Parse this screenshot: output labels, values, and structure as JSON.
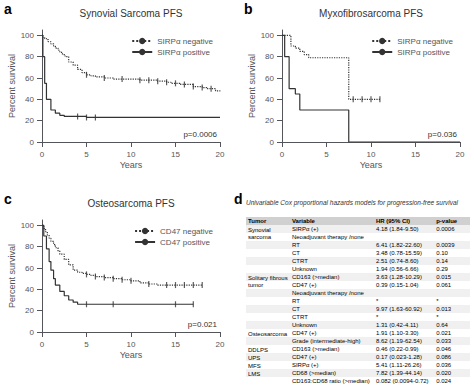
{
  "chart_data": [
    {
      "type": "step",
      "title": "Synovial Sarcoma PFS",
      "panel_label": "a",
      "annotations": [
        "p=0.0006"
      ],
      "xlabel": "Years",
      "ylabel": "Percent survival",
      "xlim": [
        0,
        20
      ],
      "ylim": [
        0,
        105
      ],
      "xticks": [
        0,
        5,
        10,
        15,
        20
      ],
      "yticks": [
        0,
        20,
        40,
        60,
        80,
        100
      ],
      "grid": false,
      "legend": "upper right",
      "series": [
        {
          "name": "SIRPα negative",
          "color": "#333333",
          "line_style": "dotted",
          "x": [
            0,
            0.1,
            0.3,
            0.5,
            0.7,
            1.0,
            1.3,
            1.5,
            1.8,
            2.0,
            2.3,
            2.6,
            3.0,
            3.5,
            4.0,
            4.5,
            5.0,
            5.5,
            6.0,
            7.0,
            8.0,
            9.0,
            10.0,
            11.0,
            12.0,
            13.0,
            14.0,
            14.5,
            15.0,
            15.5,
            16.0,
            16.5,
            17.0,
            18.0,
            18.5,
            19.0,
            19.5,
            20.0
          ],
          "values": [
            100,
            98,
            97,
            96,
            94,
            92,
            90,
            88,
            86,
            84,
            82,
            80,
            75,
            72,
            68,
            65,
            63,
            62,
            61,
            60,
            59,
            59,
            59,
            58,
            58,
            57,
            56,
            55,
            55,
            54,
            54,
            54,
            52,
            51,
            50,
            50,
            48,
            47
          ],
          "censor_x": [
            5.0,
            7.0,
            9.0,
            11.0,
            12.0,
            13.0,
            14.0,
            15.0,
            16.0,
            17.0,
            18.0,
            19.0
          ],
          "censor_values": [
            63,
            60,
            59,
            58,
            58,
            57,
            56,
            55,
            54,
            52,
            51,
            50
          ]
        },
        {
          "name": "SIRPα positive",
          "color": "#333333",
          "line_style": "solid",
          "x": [
            0,
            0.1,
            0.3,
            0.5,
            1.0,
            1.5,
            2.0,
            2.5,
            3.0,
            3.5,
            4.0,
            5.0,
            6.0,
            20.0
          ],
          "values": [
            100,
            80,
            55,
            40,
            30,
            27,
            25,
            24,
            24,
            24,
            24,
            23,
            23,
            23
          ],
          "censor_x": [
            4.0,
            5.0,
            6.0
          ],
          "censor_values": [
            24,
            23,
            23
          ]
        }
      ]
    },
    {
      "type": "step",
      "title": "Myxofibrosarcoma PFS",
      "panel_label": "b",
      "annotations": [
        "p=0.036"
      ],
      "xlabel": "Years",
      "ylabel": "Percent survival",
      "xlim": [
        0,
        20
      ],
      "ylim": [
        0,
        105
      ],
      "xticks": [
        0,
        5,
        10,
        15,
        20
      ],
      "yticks": [
        0,
        20,
        40,
        60,
        80,
        100
      ],
      "grid": false,
      "legend": "upper right",
      "series": [
        {
          "name": "SIRPα negative",
          "color": "#333333",
          "line_style": "dotted",
          "x": [
            0,
            0.5,
            1.0,
            1.5,
            2.0,
            2.5,
            3.0,
            4.0,
            5.0,
            6.0,
            7.0,
            7.5,
            8.0,
            9.0,
            10.0,
            11.0
          ],
          "values": [
            100,
            100,
            90,
            88,
            85,
            82,
            79,
            79,
            79,
            79,
            79,
            40,
            40,
            40,
            40,
            40
          ],
          "censor_x": [
            8.0,
            9.0,
            10.0,
            11.0
          ],
          "censor_values": [
            40,
            40,
            40,
            40
          ]
        },
        {
          "name": "SIRPα positive",
          "color": "#333333",
          "line_style": "solid",
          "x": [
            0,
            0.3,
            0.8,
            1.5,
            2.0,
            3.0,
            4.0,
            5.0,
            7.0,
            7.5,
            20.0
          ],
          "values": [
            100,
            80,
            50,
            45,
            30,
            30,
            30,
            30,
            30,
            0,
            0
          ],
          "censor_x": [],
          "censor_values": []
        }
      ]
    },
    {
      "type": "step",
      "title": "Osteosarcoma PFS",
      "panel_label": "c",
      "annotations": [
        "p=0.021"
      ],
      "xlabel": "Years",
      "ylabel": "Percent survival",
      "xlim": [
        0,
        20
      ],
      "ylim": [
        0,
        105
      ],
      "xticks": [
        0,
        5,
        10,
        15,
        20
      ],
      "yticks": [
        0,
        20,
        40,
        60,
        80,
        100
      ],
      "grid": false,
      "legend": "upper right",
      "series": [
        {
          "name": "CD47 negative",
          "color": "#333333",
          "line_style": "dotted",
          "x": [
            0,
            0.2,
            0.4,
            0.6,
            0.8,
            1.0,
            1.3,
            1.5,
            1.8,
            2.0,
            2.5,
            3.0,
            3.5,
            4.0,
            4.5,
            5.0,
            5.5,
            6.0,
            7.0,
            8.0,
            9.0,
            10.0,
            11.0,
            12.0,
            13.0,
            14.0,
            15.0,
            16.0,
            17.0,
            18.0
          ],
          "values": [
            100,
            97,
            94,
            91,
            88,
            85,
            82,
            79,
            76,
            73,
            68,
            63,
            58,
            56,
            55,
            54,
            53,
            52,
            51,
            50,
            49,
            48,
            46,
            45,
            44,
            44,
            44,
            44,
            44,
            44
          ],
          "censor_x": [
            5.0,
            6.0,
            7.0,
            8.0,
            9.0,
            10.0,
            12.0,
            14.0,
            15.0,
            16.0,
            17.0,
            18.0
          ],
          "censor_values": [
            54,
            52,
            51,
            50,
            49,
            48,
            45,
            44,
            44,
            44,
            44,
            44
          ]
        },
        {
          "name": "CD47 positive",
          "color": "#333333",
          "line_style": "solid",
          "x": [
            0,
            0.2,
            0.5,
            0.8,
            1.0,
            1.3,
            1.5,
            2.0,
            2.5,
            3.0,
            3.5,
            4.0,
            5.0,
            6.0,
            7.0,
            8.0,
            9.0,
            15.0,
            17.0
          ],
          "values": [
            100,
            90,
            78,
            66,
            58,
            50,
            44,
            38,
            34,
            30,
            28,
            26,
            26,
            26,
            26,
            26,
            26,
            26,
            26
          ],
          "censor_x": [
            5.0,
            8.0,
            15.0,
            17.0
          ],
          "censor_values": [
            26,
            26,
            26,
            26
          ]
        }
      ]
    },
    {
      "type": "table",
      "panel_label": "d",
      "title": "Univariable Cox proportional hazards models for progression-free survival",
      "columns": [
        "Tumor",
        "Variable",
        "HR (95% CI)",
        "p-value"
      ],
      "rows": [
        [
          "Synovial\nsarcoma",
          "SIRPα (+)",
          "4.18 (1.84-9.50)",
          "0.0006"
        ],
        [
          null,
          "Neoadjuvant therapy /none",
          null,
          null
        ],
        [
          null,
          "RT",
          "6.41 (1.82-22.60)",
          "0.0039"
        ],
        [
          null,
          "CT",
          "3.48 (0.78-15.59)",
          "0.10"
        ],
        [
          null,
          "CTRT",
          "2.51 (0.74-8.60)",
          "0.14"
        ],
        [
          null,
          "Unknown",
          "1.94 (0.56-6.66)",
          "0.29"
        ],
        [
          "Solitary fibrous\ntumor",
          "CD163 (>median)",
          "3.63 (1.28-10.29)",
          "0.015"
        ],
        [
          null,
          "CD47 (+)",
          "0.39 (0.15-1.04)",
          "0.061"
        ],
        [
          null,
          "Neoadjuvant therapy /none",
          null,
          null
        ],
        [
          null,
          "RT",
          "*",
          "*"
        ],
        [
          null,
          "CT",
          "9.97 (1.63-60.92)",
          "0.013"
        ],
        [
          null,
          "CTRT",
          "*",
          "*"
        ],
        [
          null,
          "Unknown",
          "1.31 (0.42-4.11)",
          "0.64"
        ],
        [
          "Osteosarcoma",
          "CD47 (+)",
          "1.91 (1.10-3.30)",
          "0.021"
        ],
        [
          null,
          "Grade (intermediate-high)",
          "8.62 (1.19-62.54)",
          "0.033"
        ],
        [
          "DDLPS",
          "CD163 (>median)",
          "0.46 (0.22-0.99)",
          "0.046"
        ],
        [
          "UPS",
          "CD47 (+)",
          "0.17 (0.023-1.28)",
          "0.086"
        ],
        [
          "MFS",
          "SIRPα (+)",
          "5.41 (1.11-26.26)",
          "0.036"
        ],
        [
          "LMS",
          "CD68 (>median)",
          "7.82 (1.39-44.14)",
          "0.020"
        ],
        [
          null,
          "CD163:CD68 ratio (>median)",
          "0.082 (0.0094-0.72)",
          "0.024"
        ]
      ]
    }
  ]
}
